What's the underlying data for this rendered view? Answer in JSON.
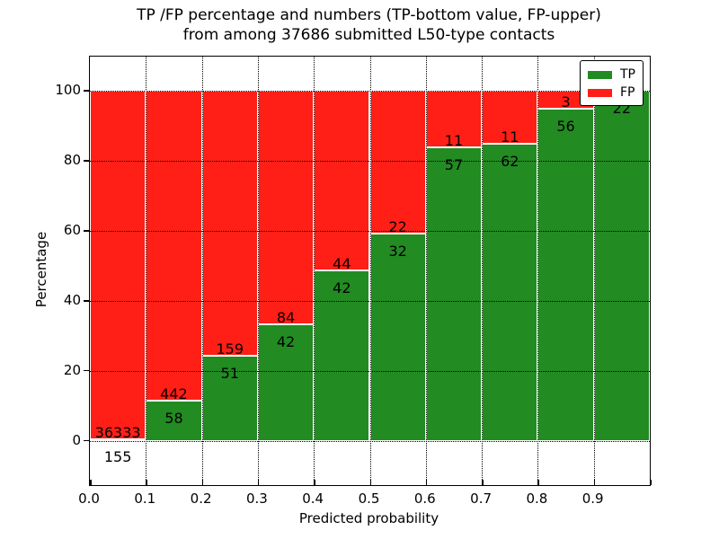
{
  "title": {
    "line1": "TP /FP percentage and numbers (TP-bottom value, FP-upper)",
    "line2": "from among 37686 submitted L50-type contacts"
  },
  "axes": {
    "xlabel": "Predicted probability",
    "ylabel": "Percentage",
    "x_tick_labels": [
      "0.0",
      "0.1",
      "0.2",
      "0.3",
      "0.4",
      "0.5",
      "0.6",
      "0.7",
      "0.8",
      "0.9"
    ],
    "y_tick_labels": [
      "0",
      "20",
      "40",
      "60",
      "80",
      "100"
    ]
  },
  "legend": {
    "items": [
      {
        "label": "TP",
        "color": "#228b22"
      },
      {
        "label": "FP",
        "color": "#ff1f16"
      }
    ]
  },
  "colors": {
    "tp": "#228b22",
    "fp": "#ff1f16",
    "bar_edge": "#ffffff",
    "grid": "#000000",
    "frame": "#000000",
    "background": "#ffffff"
  },
  "chart_data": {
    "type": "bar",
    "stacked": true,
    "normalized": "each bin scaled to 100%",
    "title": "TP /FP percentage and numbers (TP-bottom value, FP-upper)\nfrom among 37686 submitted L50-type contacts",
    "xlabel": "Predicted probability",
    "ylabel": "Percentage",
    "total_contacts": 37686,
    "bin_edges": [
      0.0,
      0.1,
      0.2,
      0.3,
      0.4,
      0.5,
      0.6,
      0.7,
      0.8,
      0.9,
      1.0
    ],
    "categories": [
      "0.0-0.1",
      "0.1-0.2",
      "0.2-0.3",
      "0.3-0.4",
      "0.4-0.5",
      "0.5-0.6",
      "0.6-0.7",
      "0.7-0.8",
      "0.8-0.9",
      "0.9-1.0"
    ],
    "series": [
      {
        "name": "TP",
        "color": "#228b22",
        "counts": [
          155,
          58,
          51,
          42,
          42,
          32,
          57,
          62,
          56,
          22
        ],
        "percent": [
          0.42,
          11.6,
          24.29,
          33.33,
          48.84,
          59.26,
          83.82,
          84.93,
          94.92,
          100.0
        ]
      },
      {
        "name": "FP",
        "color": "#ff1f16",
        "counts": [
          36333,
          442,
          159,
          84,
          44,
          22,
          11,
          11,
          3,
          0
        ],
        "percent": [
          99.58,
          88.4,
          75.71,
          66.67,
          51.16,
          40.74,
          16.18,
          15.07,
          5.08,
          0.0
        ]
      }
    ],
    "bar_value_labels": "TP count below segment boundary, FP count above segment boundary; FP label omitted when FP=0",
    "x_ticks": [
      0.0,
      0.1,
      0.2,
      0.3,
      0.4,
      0.5,
      0.6,
      0.7,
      0.8,
      0.9,
      1.0
    ],
    "y_ticks": [
      0,
      20,
      40,
      60,
      80,
      100
    ],
    "ylim": [
      0,
      100
    ],
    "ylim_display": [
      -12.6,
      109.8
    ],
    "grid": "dotted black, both axes",
    "legend_position": "upper right"
  }
}
